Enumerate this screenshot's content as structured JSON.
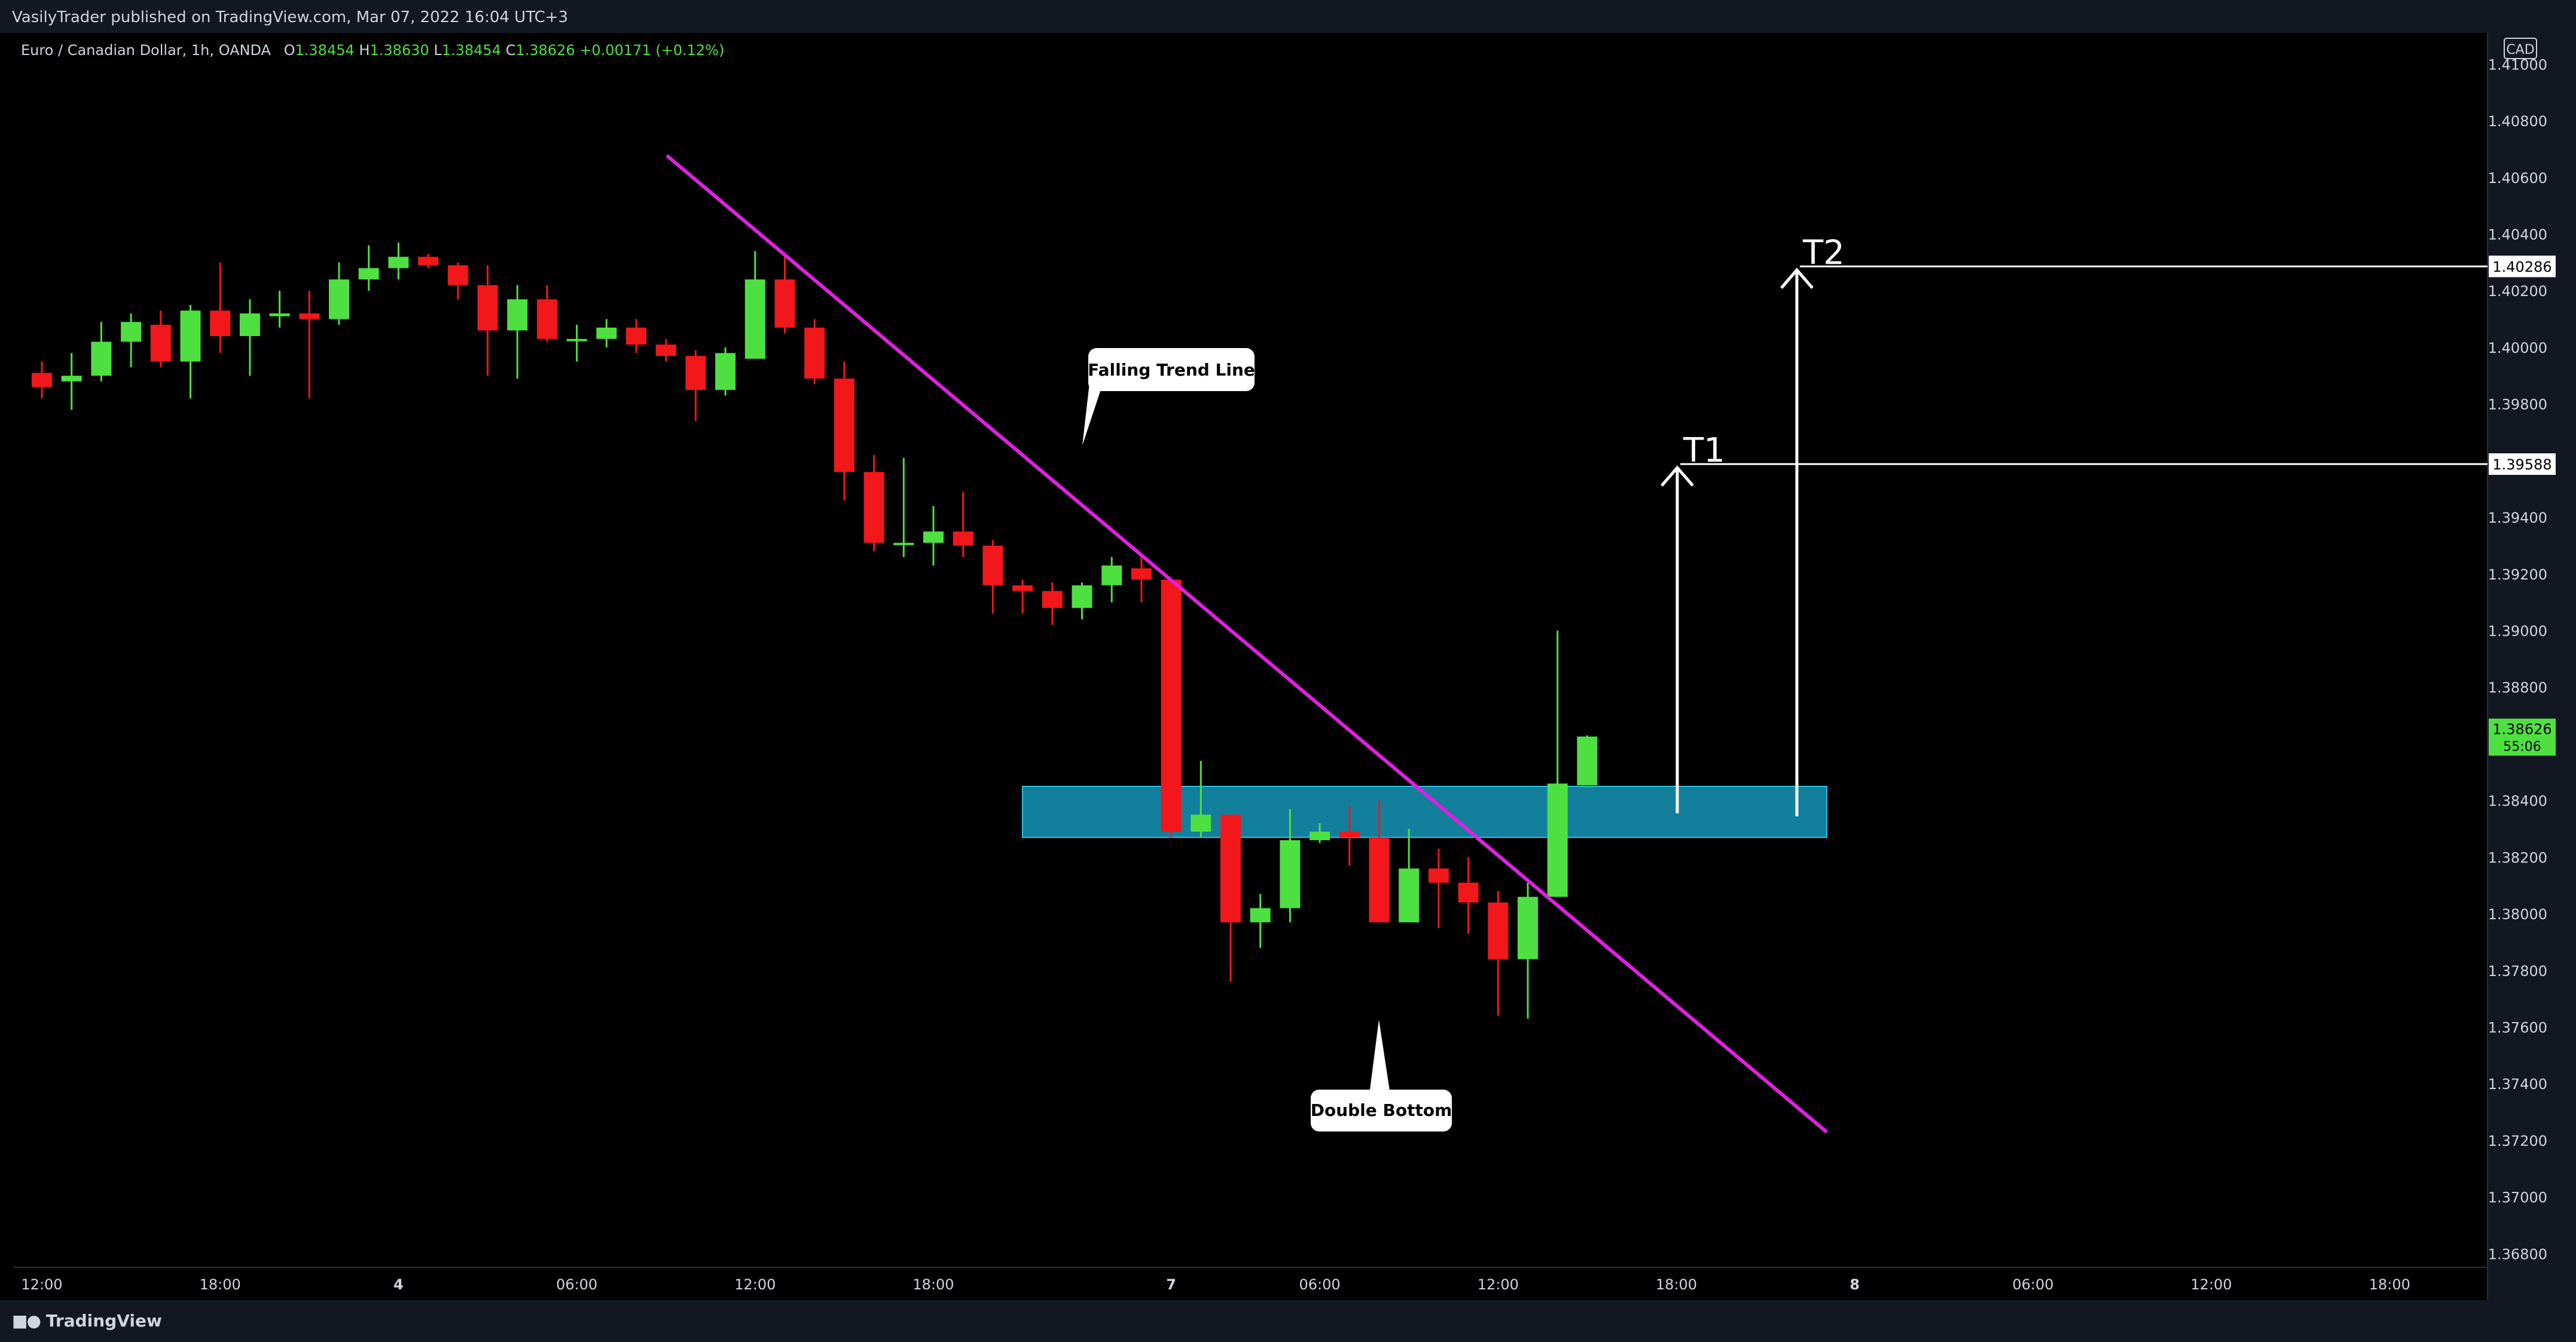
{
  "header": {
    "published": "VasilyTrader published on TradingView.com, Mar 07, 2022 16:04 UTC+3"
  },
  "legend": {
    "symbol": "Euro / Canadian Dollar, 1h, OANDA",
    "open_label": "O",
    "open": "1.38454",
    "high_label": "H",
    "high": "1.38630",
    "low_label": "L",
    "low": "1.38454",
    "close_label": "C",
    "close": "1.38626",
    "change": "+0.00171 (+0.12%)"
  },
  "footer": {
    "brand": "TradingView"
  },
  "colors": {
    "up": "#4ee040",
    "down": "#f2171b",
    "trend": "#e020e0",
    "zone": "#127f9d",
    "background": "#000000"
  },
  "chart_data": {
    "type": "candlestick",
    "currency_badge": "CAD",
    "ylim": [
      1.3675,
      1.411
    ],
    "y_ticks": [
      "1.41000",
      "1.40800",
      "1.40600",
      "1.40400",
      "1.40200",
      "1.40000",
      "1.39800",
      "1.39600",
      "1.39400",
      "1.39200",
      "1.39000",
      "1.38800",
      "1.38600",
      "1.38400",
      "1.38200",
      "1.38000",
      "1.37800",
      "1.37600",
      "1.37400",
      "1.37200",
      "1.37000",
      "1.36800"
    ],
    "x_ticks": [
      {
        "i": 0,
        "label": "12:00"
      },
      {
        "i": 6,
        "label": "18:00"
      },
      {
        "i": 12,
        "label": "4"
      },
      {
        "i": 18,
        "label": "06:00"
      },
      {
        "i": 24,
        "label": "12:00"
      },
      {
        "i": 30,
        "label": "18:00"
      },
      {
        "i": 38,
        "label": "7"
      },
      {
        "i": 43,
        "label": "06:00"
      },
      {
        "i": 49,
        "label": "12:00"
      },
      {
        "i": 55,
        "label": "18:00"
      },
      {
        "i": 61,
        "label": "8"
      },
      {
        "i": 67,
        "label": "06:00"
      },
      {
        "i": 73,
        "label": "12:00"
      },
      {
        "i": 79,
        "label": "18:00"
      }
    ],
    "candles": [
      {
        "o": 1.3991,
        "h": 1.3995,
        "l": 1.3982,
        "c": 1.3986
      },
      {
        "o": 1.3988,
        "h": 1.3998,
        "l": 1.3978,
        "c": 1.399
      },
      {
        "o": 1.399,
        "h": 1.4009,
        "l": 1.3988,
        "c": 1.4002
      },
      {
        "o": 1.4002,
        "h": 1.4012,
        "l": 1.3993,
        "c": 1.4009
      },
      {
        "o": 1.4008,
        "h": 1.4013,
        "l": 1.3993,
        "c": 1.3995
      },
      {
        "o": 1.3995,
        "h": 1.4015,
        "l": 1.3982,
        "c": 1.4013
      },
      {
        "o": 1.4013,
        "h": 1.403,
        "l": 1.3998,
        "c": 1.4004
      },
      {
        "o": 1.4004,
        "h": 1.4017,
        "l": 1.399,
        "c": 1.4012
      },
      {
        "o": 1.4011,
        "h": 1.402,
        "l": 1.4007,
        "c": 1.4012
      },
      {
        "o": 1.4012,
        "h": 1.402,
        "l": 1.3982,
        "c": 1.401
      },
      {
        "o": 1.401,
        "h": 1.403,
        "l": 1.4008,
        "c": 1.4024
      },
      {
        "o": 1.4024,
        "h": 1.4036,
        "l": 1.402,
        "c": 1.4028
      },
      {
        "o": 1.4028,
        "h": 1.4037,
        "l": 1.4024,
        "c": 1.4032
      },
      {
        "o": 1.4032,
        "h": 1.4033,
        "l": 1.4028,
        "c": 1.4029
      },
      {
        "o": 1.4029,
        "h": 1.403,
        "l": 1.4017,
        "c": 1.4022
      },
      {
        "o": 1.4022,
        "h": 1.4029,
        "l": 1.399,
        "c": 1.4006
      },
      {
        "o": 1.4006,
        "h": 1.4022,
        "l": 1.3989,
        "c": 1.4017
      },
      {
        "o": 1.4017,
        "h": 1.4022,
        "l": 1.4002,
        "c": 1.4003
      },
      {
        "o": 1.4003,
        "h": 1.4008,
        "l": 1.3995,
        "c": 1.4003
      },
      {
        "o": 1.4003,
        "h": 1.401,
        "l": 1.4,
        "c": 1.4007
      },
      {
        "o": 1.4007,
        "h": 1.401,
        "l": 1.3998,
        "c": 1.4001
      },
      {
        "o": 1.4001,
        "h": 1.4003,
        "l": 1.3995,
        "c": 1.3997
      },
      {
        "o": 1.3997,
        "h": 1.3999,
        "l": 1.3974,
        "c": 1.3985
      },
      {
        "o": 1.3985,
        "h": 1.4,
        "l": 1.3983,
        "c": 1.3998
      },
      {
        "o": 1.3996,
        "h": 1.4034,
        "l": 1.3996,
        "c": 1.4024
      },
      {
        "o": 1.4024,
        "h": 1.4033,
        "l": 1.4005,
        "c": 1.4007
      },
      {
        "o": 1.4007,
        "h": 1.401,
        "l": 1.3987,
        "c": 1.3989
      },
      {
        "o": 1.3989,
        "h": 1.3995,
        "l": 1.3946,
        "c": 1.3956
      },
      {
        "o": 1.3956,
        "h": 1.3962,
        "l": 1.3928,
        "c": 1.3931
      },
      {
        "o": 1.3931,
        "h": 1.3961,
        "l": 1.3926,
        "c": 1.3931
      },
      {
        "o": 1.3931,
        "h": 1.3944,
        "l": 1.3923,
        "c": 1.3935
      },
      {
        "o": 1.3935,
        "h": 1.3949,
        "l": 1.3926,
        "c": 1.393
      },
      {
        "o": 1.393,
        "h": 1.3932,
        "l": 1.3906,
        "c": 1.3916
      },
      {
        "o": 1.3916,
        "h": 1.3918,
        "l": 1.3906,
        "c": 1.3914
      },
      {
        "o": 1.3914,
        "h": 1.3917,
        "l": 1.3902,
        "c": 1.3908
      },
      {
        "o": 1.3908,
        "h": 1.3917,
        "l": 1.3904,
        "c": 1.3916
      },
      {
        "o": 1.3916,
        "h": 1.3926,
        "l": 1.391,
        "c": 1.3923
      },
      {
        "o": 1.3922,
        "h": 1.3926,
        "l": 1.391,
        "c": 1.3918
      },
      {
        "o": 1.3918,
        "h": 1.3918,
        "l": 1.3827,
        "c": 1.3829
      },
      {
        "o": 1.3829,
        "h": 1.3854,
        "l": 1.3827,
        "c": 1.3835
      },
      {
        "o": 1.3835,
        "h": 1.3835,
        "l": 1.3776,
        "c": 1.3797
      },
      {
        "o": 1.3797,
        "h": 1.3807,
        "l": 1.3788,
        "c": 1.3802
      },
      {
        "o": 1.3802,
        "h": 1.3837,
        "l": 1.3797,
        "c": 1.3826
      },
      {
        "o": 1.3826,
        "h": 1.3832,
        "l": 1.3825,
        "c": 1.3829
      },
      {
        "o": 1.3829,
        "h": 1.3838,
        "l": 1.3817,
        "c": 1.3827
      },
      {
        "o": 1.3827,
        "h": 1.384,
        "l": 1.3797,
        "c": 1.3797
      },
      {
        "o": 1.3797,
        "h": 1.383,
        "l": 1.3797,
        "c": 1.3816
      },
      {
        "o": 1.3816,
        "h": 1.3823,
        "l": 1.3795,
        "c": 1.3811
      },
      {
        "o": 1.3811,
        "h": 1.382,
        "l": 1.3793,
        "c": 1.3804
      },
      {
        "o": 1.3804,
        "h": 1.3808,
        "l": 1.3764,
        "c": 1.3784
      },
      {
        "o": 1.3784,
        "h": 1.3811,
        "l": 1.3763,
        "c": 1.3806
      },
      {
        "o": 1.3806,
        "h": 1.39,
        "l": 1.3806,
        "c": 1.3846
      },
      {
        "o": 1.38454,
        "h": 1.3863,
        "l": 1.38454,
        "c": 1.38626
      }
    ],
    "annotations": {
      "trend_line_label": "Falling Trend Line",
      "pattern_label": "Double Bottom",
      "targets": [
        {
          "label": "T1",
          "price": "1.39588"
        },
        {
          "label": "T2",
          "price": "1.40286"
        }
      ],
      "last_price": "1.38626",
      "countdown": "55:06",
      "zone": {
        "from": 1.3827,
        "to": 1.3845
      }
    }
  }
}
